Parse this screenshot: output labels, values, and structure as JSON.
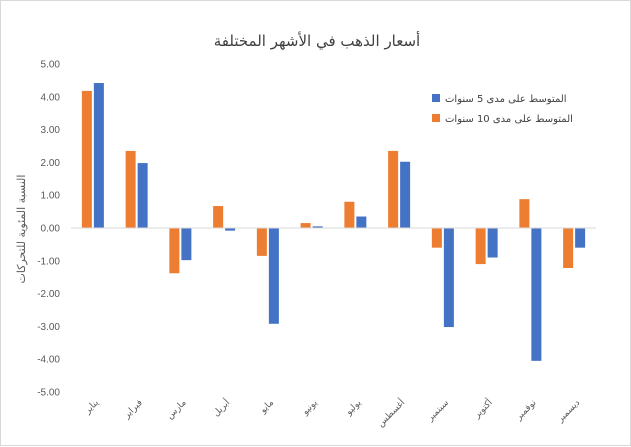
{
  "chart_data": {
    "type": "bar",
    "title": "أسعار الذهب في الأشهر المختلفة",
    "xlabel": "",
    "ylabel": "النسبة المئوية للتحركات",
    "categories": [
      "يناير",
      "فبراير",
      "مارس",
      "أبريل",
      "مايو",
      "يونيو",
      "يوليو",
      "أغسطس",
      "سبتمبر",
      "أكتوبر",
      "نوفمبر",
      "ديسمبر"
    ],
    "series": [
      {
        "name": "المتوسط على مدى 10 سنوات",
        "color": "#ed7d31",
        "values": [
          4.18,
          2.35,
          -1.38,
          0.67,
          -0.85,
          0.15,
          0.8,
          2.35,
          -0.6,
          -1.1,
          0.88,
          -1.22
        ]
      },
      {
        "name": "المتوسط على مدى 5 سنوات",
        "color": "#4472c4",
        "values": [
          4.42,
          1.98,
          -0.98,
          -0.08,
          -2.92,
          0.05,
          0.35,
          2.02,
          -3.02,
          -0.9,
          -4.05,
          -0.6
        ]
      }
    ],
    "ylim": [
      -5,
      5
    ],
    "ytick_step": 1,
    "ytick_labels": [
      "5.00",
      "4.00",
      "3.00",
      "2.00",
      "1.00",
      "0.00",
      "-1.00",
      "-2.00",
      "-3.00",
      "-4.00",
      "-5.00"
    ],
    "legend_position": "top-right",
    "legend_order": [
      1,
      0
    ],
    "grid": false
  }
}
